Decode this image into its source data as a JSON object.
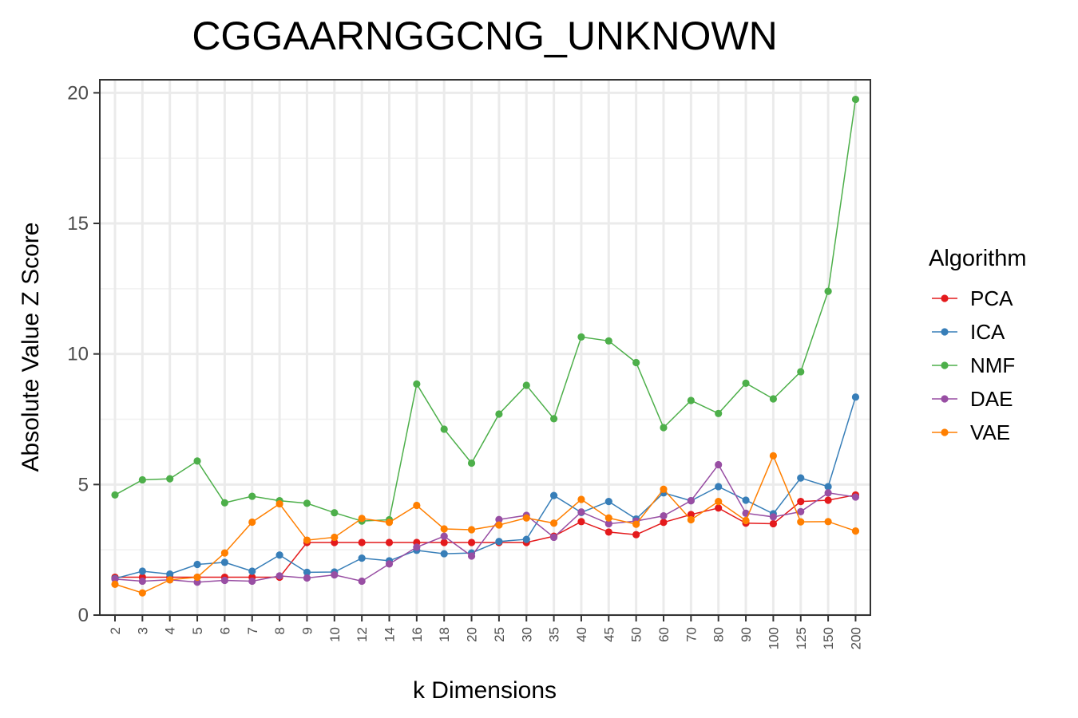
{
  "chart_data": {
    "type": "line",
    "title": "CGGAARNGGCNG_UNKNOWN",
    "xlabel": "k Dimensions",
    "ylabel": "Absolute Value Z Score",
    "ylim": [
      0,
      20.5
    ],
    "yticks": [
      0,
      5,
      10,
      15,
      20
    ],
    "categories": [
      "2",
      "3",
      "4",
      "5",
      "6",
      "7",
      "8",
      "9",
      "10",
      "12",
      "14",
      "16",
      "18",
      "20",
      "25",
      "30",
      "35",
      "40",
      "45",
      "50",
      "60",
      "70",
      "80",
      "90",
      "100",
      "125",
      "150",
      "200"
    ],
    "grid": true,
    "legend": {
      "title": "Algorithm",
      "placement": "right"
    },
    "series": [
      {
        "name": "PCA",
        "color": "#e41a1c",
        "values": [
          1.45,
          1.45,
          1.45,
          1.45,
          1.45,
          1.45,
          1.45,
          2.78,
          2.78,
          2.78,
          2.78,
          2.78,
          2.78,
          2.78,
          2.78,
          2.78,
          3.02,
          3.58,
          3.18,
          3.08,
          3.55,
          3.85,
          4.1,
          3.52,
          3.5,
          4.35,
          4.4,
          4.6
        ]
      },
      {
        "name": "ICA",
        "color": "#377eb8",
        "values": [
          1.4,
          1.68,
          1.57,
          1.94,
          2.02,
          1.68,
          2.3,
          1.64,
          1.65,
          2.18,
          2.08,
          2.48,
          2.35,
          2.38,
          2.82,
          2.9,
          4.58,
          3.93,
          4.35,
          3.68,
          4.68,
          4.38,
          4.92,
          4.4,
          3.88,
          5.25,
          4.92,
          8.35
        ]
      },
      {
        "name": "NMF",
        "color": "#4daf4a",
        "values": [
          4.6,
          5.18,
          5.22,
          5.9,
          4.3,
          4.55,
          4.38,
          4.28,
          3.92,
          3.6,
          3.65,
          8.85,
          7.12,
          5.82,
          7.7,
          8.8,
          7.52,
          10.65,
          10.5,
          9.67,
          7.18,
          8.22,
          7.72,
          8.88,
          8.28,
          9.32,
          12.4,
          19.75
        ]
      },
      {
        "name": "DAE",
        "color": "#984ea3",
        "values": [
          1.38,
          1.3,
          1.35,
          1.26,
          1.33,
          1.3,
          1.5,
          1.42,
          1.54,
          1.3,
          1.96,
          2.6,
          3.02,
          2.26,
          3.66,
          3.82,
          2.98,
          3.95,
          3.5,
          3.6,
          3.8,
          4.38,
          5.76,
          3.9,
          3.76,
          3.96,
          4.68,
          4.52
        ]
      },
      {
        "name": "VAE",
        "color": "#ff7f00",
        "values": [
          1.18,
          0.85,
          1.35,
          1.45,
          2.38,
          3.56,
          4.26,
          2.87,
          2.98,
          3.7,
          3.55,
          4.2,
          3.3,
          3.27,
          3.45,
          3.72,
          3.52,
          4.43,
          3.72,
          3.48,
          4.82,
          3.65,
          4.35,
          3.62,
          6.1,
          3.57,
          3.58,
          3.22
        ]
      }
    ]
  }
}
